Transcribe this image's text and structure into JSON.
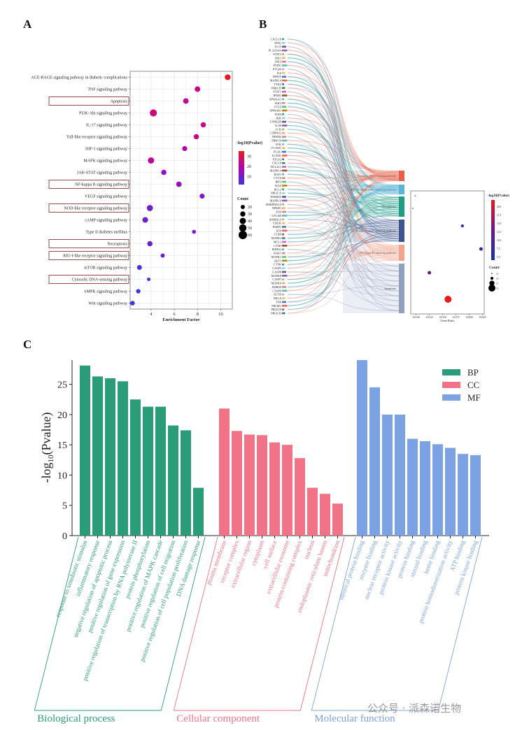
{
  "panels": {
    "A": "A",
    "B": "B",
    "C": "C"
  },
  "chart_data": [
    {
      "id": "panel-a",
      "type": "scatter",
      "title": "",
      "xlabel": "Enrichment Factor",
      "ylabel": "",
      "xlim": [
        2.2,
        11.0
      ],
      "xticks": [
        4,
        6,
        8,
        10
      ],
      "grid": true,
      "categories": [
        "AGE-RAGE signaling pathway in diabetic complications",
        "TNF signaling pathway",
        "Apoptosis",
        "PI3K-Akt signaling pathway",
        "IL-17 signaling pathway",
        "Toll-like receptor signaling pathway",
        "HIF-1 signaling pathway",
        "MAPK signaling pathway",
        "JAK-STAT signaling pathway",
        "NF-kappa B signaling pathway",
        "VEGF signaling pathway",
        "NOD-like receptor signaling pathway",
        "cAMP signaling pathway",
        "Type II diabetes mellitus",
        "Necroptosis",
        "RIG-I-like receptor signaling pathway",
        "mTOR signaling pathway",
        "Cytosolic DNA-sensing pathway",
        "AMPK signaling pathway",
        "Wnt signaling pathway"
      ],
      "highlighted": [
        "Apoptosis",
        "NF-kappa B signaling pathway",
        "NOD-like receptor signaling pathway",
        "Necroptosis",
        "RIG-I-like receptor signaling pathway",
        "Cytosolic DNA-sensing pathway"
      ],
      "x": [
        10.6,
        8.0,
        7.0,
        4.2,
        8.5,
        7.9,
        6.9,
        4.0,
        5.1,
        6.4,
        8.4,
        3.9,
        3.5,
        7.7,
        3.9,
        5.0,
        3.0,
        3.8,
        2.9,
        2.4
      ],
      "count": [
        35,
        33,
        33,
        48,
        30,
        30,
        28,
        40,
        30,
        32,
        28,
        38,
        34,
        18,
        30,
        20,
        26,
        14,
        22,
        24
      ],
      "neglog10p": [
        34,
        24,
        22,
        25,
        24,
        23,
        19,
        21,
        14,
        14,
        12,
        9,
        8,
        10,
        8,
        8,
        4,
        5,
        3,
        2
      ],
      "color_legend": {
        "title": "-log10(Pvalue)",
        "ticks": [
          10,
          20,
          30
        ],
        "range": [
          2,
          35
        ],
        "low": "#3a38e0",
        "mid": "#b300b3",
        "high": "#ee1a1a"
      },
      "size_legend": {
        "title": "Count",
        "values": [
          20,
          30,
          40,
          50,
          60
        ]
      }
    },
    {
      "id": "panel-b",
      "type": "sankey",
      "genes": [
        "CXCL10",
        "IFNG",
        "IL1A",
        "PLA2G4A",
        "STAT3",
        "JAK1",
        "JAK2",
        "PYDC",
        "PYGM",
        "IL6",
        "RHOA",
        "MAPK14",
        "TYK2",
        "PRKCD",
        "STAT1",
        "IFNB1",
        "SP90AA1",
        "JAK3",
        "CCL2",
        "SP90AB1",
        "TLR4",
        "IKK",
        "CSNK2B",
        "IL1B",
        "LCK",
        "CD80LG",
        "NFKB2",
        "PRKCB",
        "SYK",
        "VCAM1",
        "PLAU",
        "ICAM1",
        "PTGS2",
        "CXCL8",
        "BCL2L1",
        "MAPK14",
        "RAF1",
        "CYCS",
        "IRF3",
        "BAX",
        "BCL2",
        "PIK3CA",
        "NFKBIA",
        "MAPK10",
        "SERPINE1A",
        "NFKB1",
        "FOS",
        "CFLAR",
        "ADRM1A",
        "CHUK",
        "PARP1",
        "JUN",
        "CTSB",
        "MAPK3",
        "MCL1",
        "CTSD",
        "IKBKG",
        "BAK1",
        "MAPK1",
        "AKT1",
        "CTSK",
        "CASP3",
        "CASP8",
        "MAPK8",
        "CASP7",
        "MAPK9",
        "IKBKB",
        "CASP9",
        "ACTB",
        "RELA",
        "TNF",
        "PIK3R1",
        "PIK3CB",
        "PIK3CD"
      ],
      "pathways": [
        "Cytosolic DNA-sensing pathway",
        "RIG-I-like receptor signaling pathway",
        "Necroptosis",
        "NOD-like receptor signaling pathway",
        "NF-kappa B signaling pathway",
        "Apoptosis"
      ],
      "pathway_colors": [
        "#e9604a",
        "#5ab4d6",
        "#1e9c84",
        "#3f558f",
        "#f2a48e",
        "#8fa0c0"
      ]
    },
    {
      "id": "panel-b-dot",
      "type": "scatter",
      "xlabel": "Gene.Ratio",
      "xticks": [
        "0.0100",
        "0.0125",
        "0.0150",
        "0.0175",
        "0.0200",
        "0.0225"
      ],
      "xlim": [
        0.009,
        0.0228
      ],
      "categories": [
        "Cytosolic DNA-sensing pathway",
        "RIG-I-like receptor signaling pathway",
        "Necroptosis",
        "NOD-like receptor signaling pathway",
        "NF-kappa B signaling pathway",
        "Apoptosis"
      ],
      "x": [
        0.0098,
        0.0094,
        0.0187,
        0.0222,
        0.0125,
        0.016
      ],
      "count": [
        14,
        14,
        20,
        22,
        22,
        33
      ],
      "neglog10p": [
        5.0,
        5.0,
        7.0,
        8.0,
        13.0,
        21.0
      ],
      "color_legend": {
        "title": "-log10(Pvalue)",
        "ticks": [
          "20.0",
          "17.5",
          "15.0",
          "12.5",
          "10.0",
          "7.5",
          "5.0"
        ]
      },
      "size_legend": {
        "title": "Count",
        "values": [
          14,
          20,
          27,
          33
        ]
      }
    },
    {
      "id": "panel-c",
      "type": "bar",
      "ylabel": "-log10(Pvalue)",
      "ylim": [
        0,
        29
      ],
      "yticks": [
        0,
        5,
        10,
        15,
        20,
        25
      ],
      "legend": "top-right",
      "series": [
        {
          "name": "BP",
          "group_label": "Biological process",
          "color": "#2a9d78",
          "categories": [
            "response to xenobiotic stimulus",
            "inflammatory response",
            "negative regulation of apoptotic process",
            "positive regulation of gene expression",
            "positive regulation of transcription by RNA polymerase II",
            "protein phosphorylation",
            "positive regulation of MAPK cascade",
            "positive regulation of cell migration",
            "positive regulation of cell population proliferation",
            "DNA damage response"
          ],
          "values": [
            28.1,
            26.3,
            26.0,
            25.5,
            22.5,
            21.3,
            21.3,
            18.2,
            17.4,
            7.9
          ]
        },
        {
          "name": "CC",
          "group_label": "Cellular component",
          "color": "#f07387",
          "categories": [
            "plasma membrane",
            "receptor complex",
            "extracellular region",
            "cytoplasm",
            "cell surface",
            "extracellular exosome",
            "protein-containing complex",
            "nucleus",
            "endoplasmic reticulum lumen",
            "mitochondrion"
          ],
          "values": [
            21.0,
            17.3,
            16.7,
            16.6,
            15.4,
            15.0,
            12.8,
            7.9,
            6.9,
            5.3
          ]
        },
        {
          "name": "MF",
          "group_label": "Molecular function",
          "color": "#7ba3e3",
          "categories": [
            "identical protein binding",
            "enzyme binding",
            "nuclear receptor activity",
            "protein kinase activity",
            "protein binding",
            "steroid binding",
            "heme binding",
            "protein homodimerization activity",
            "ATP binding",
            "protein kinase binding"
          ],
          "values": [
            29.0,
            24.5,
            20.0,
            20.0,
            16.0,
            15.6,
            15.1,
            14.5,
            13.5,
            13.3
          ]
        }
      ]
    }
  ],
  "watermark": "公众号 · 派森诺生物"
}
